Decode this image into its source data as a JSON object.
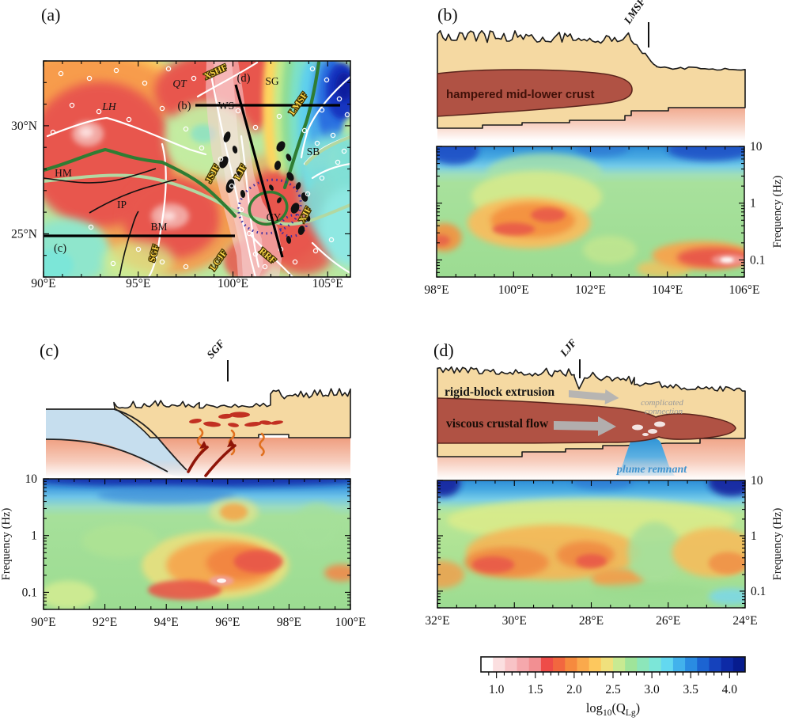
{
  "figure": {
    "background": "#ffffff"
  },
  "panel_letters": {
    "a": "(a)",
    "b": "(b)",
    "c": "(c)",
    "d": "(d)"
  },
  "chart_data": {
    "a": {
      "type": "heatmap",
      "subtype": "map of log10(QLg) at low frequency",
      "label": "(a)",
      "x_axis": {
        "min": 90,
        "max": 106.2,
        "minor_step": 1,
        "major_ticks": [
          {
            "v": 90,
            "label": "90°E"
          },
          {
            "v": 95,
            "label": "95°E"
          },
          {
            "v": 100,
            "label": "100°E"
          },
          {
            "v": 105,
            "label": "105°E"
          }
        ]
      },
      "y_axis": {
        "min": 23,
        "max": 33,
        "minor_step": 1,
        "major_ticks": [
          {
            "v": 30,
            "label": "30°N"
          },
          {
            "v": 25,
            "label": "25°N"
          }
        ]
      },
      "terranes": {
        "qt": "QT",
        "sg": "SG",
        "lh": "LH",
        "ws": "WS",
        "hm": "HM",
        "ip": "IP",
        "bm": "BM",
        "sb": "SB",
        "cy": "CY"
      },
      "faults": {
        "xshf": "XSHF",
        "lmsf": "LMSF",
        "jsjf": "JSJF",
        "ljf": "LJF",
        "sgf": "SGF",
        "lcjf": "LCJF",
        "rrf": "RRF",
        "xjf": "XJF"
      },
      "sections": {
        "b": "(b)",
        "c": "(c)",
        "d": "(d)"
      },
      "legend_colors": {
        "low_q_red": "#e8564e",
        "high_q_blue": "#1535c0",
        "swath_pink": "rgba(247,208,214,0.55)"
      }
    },
    "b": {
      "type": "heatmap",
      "label": "(b)",
      "fault_marker": "LMSF",
      "annotation": "hampered  mid-lower crust",
      "x_axis": {
        "min": 98,
        "max": 106,
        "minor_step": 0.5,
        "major_ticks": [
          {
            "v": 98,
            "label": "98°E"
          },
          {
            "v": 100,
            "label": "100°E"
          },
          {
            "v": 102,
            "label": "102°E"
          },
          {
            "v": 104,
            "label": "104°E"
          },
          {
            "v": 106,
            "label": "106°E"
          }
        ]
      },
      "y_axis": {
        "label": "Frequency (Hz)",
        "scale": "log",
        "min": 0.05,
        "max": 10,
        "side": "right",
        "major_ticks": [
          {
            "v": 10,
            "label": "10"
          },
          {
            "v": 1,
            "label": "1"
          },
          {
            "v": 0.1,
            "label": "0.1"
          }
        ]
      },
      "bands": [
        {
          "f": 10,
          "c": "#2e8ed8"
        },
        {
          "f": 6.5,
          "c": "#47a9e2"
        },
        {
          "f": 4.5,
          "c": "#74cbe8"
        },
        {
          "f": 3.2,
          "c": "#9fdfba"
        },
        {
          "f": 2.3,
          "c": "#a8e19c"
        },
        {
          "f": 0.05,
          "c": "#9cdc92"
        }
      ],
      "features": [
        {
          "x": 98.45,
          "f": 8.5,
          "xs": 1.3,
          "fs": 0.5,
          "c": "#1c49c4",
          "o": 0.85
        },
        {
          "x": 105.1,
          "f": 8.8,
          "xs": 2.2,
          "fs": 0.4,
          "c": "#1c49c4",
          "o": 0.8
        },
        {
          "x": 102.3,
          "f": 9.3,
          "xs": 1.4,
          "fs": 0.3,
          "c": "#2a6fd0",
          "o": 0.6
        },
        {
          "x": 100.8,
          "f": 3.4,
          "xs": 3.0,
          "fs": 0.7,
          "c": "#a8e2a8",
          "o": 0.8
        },
        {
          "x": 100.6,
          "f": 1.3,
          "xs": 3.4,
          "fs": 0.9,
          "c": "#d6ea8c",
          "o": 0.9
        },
        {
          "x": 100.4,
          "f": 0.45,
          "xs": 3.2,
          "fs": 0.9,
          "c": "#f7bd5e",
          "o": 0.95
        },
        {
          "x": 100.5,
          "f": 0.5,
          "xs": 2.2,
          "fs": 0.6,
          "c": "#f49140",
          "o": 0.95
        },
        {
          "x": 100.9,
          "f": 0.62,
          "xs": 0.9,
          "fs": 0.25,
          "c": "#e85a4a",
          "o": 0.9,
          "blur": 3
        },
        {
          "x": 100.0,
          "f": 0.35,
          "xs": 1.1,
          "fs": 0.22,
          "c": "#e85a4a",
          "o": 0.9,
          "blur": 3
        },
        {
          "x": 98.2,
          "f": 0.25,
          "xs": 0.9,
          "fs": 0.5,
          "c": "#f49140",
          "o": 0.9
        },
        {
          "x": 98.1,
          "f": 0.22,
          "xs": 0.5,
          "fs": 0.2,
          "c": "#e8614a",
          "o": 0.85,
          "blur": 3
        },
        {
          "x": 102.5,
          "f": 0.15,
          "xs": 1.4,
          "fs": 0.5,
          "c": "#c9e88e",
          "o": 0.7
        },
        {
          "x": 103.9,
          "f": 0.07,
          "xs": 1.4,
          "fs": 0.3,
          "c": "#f2c25e",
          "o": 0.8
        },
        {
          "x": 104.9,
          "f": 0.12,
          "xs": 2.6,
          "fs": 0.5,
          "c": "#f7a44e",
          "o": 0.95
        },
        {
          "x": 105.2,
          "f": 0.11,
          "xs": 1.9,
          "fs": 0.35,
          "c": "#e8564a",
          "o": 0.95
        },
        {
          "x": 105.6,
          "f": 0.1,
          "xs": 0.9,
          "fs": 0.2,
          "c": "#f29b94",
          "o": 0.95,
          "blur": 3
        },
        {
          "x": 105.55,
          "f": 0.1,
          "xs": 0.35,
          "fs": 0.1,
          "c": "#ffffff",
          "o": 0.95,
          "blur": 2
        }
      ]
    },
    "c": {
      "type": "heatmap",
      "label": "(c)",
      "fault_marker": "SGF",
      "x_axis": {
        "min": 90,
        "max": 100,
        "minor_step": 0.5,
        "major_ticks": [
          {
            "v": 90,
            "label": "90°E"
          },
          {
            "v": 92,
            "label": "92°E"
          },
          {
            "v": 94,
            "label": "94°E"
          },
          {
            "v": 96,
            "label": "96°E"
          },
          {
            "v": 98,
            "label": "98°E"
          },
          {
            "v": 100,
            "label": "100°E"
          }
        ]
      },
      "y_axis": {
        "label": "Frequency (Hz)",
        "scale": "log",
        "min": 0.05,
        "max": 10,
        "side": "left",
        "major_ticks": [
          {
            "v": 10,
            "label": "10"
          },
          {
            "v": 1,
            "label": "1"
          },
          {
            "v": 0.1,
            "label": "0.1"
          }
        ]
      },
      "bands": [
        {
          "f": 10,
          "c": "#2d86d4"
        },
        {
          "f": 7,
          "c": "#3f9ade"
        },
        {
          "f": 4.8,
          "c": "#6ec4e8"
        },
        {
          "f": 3.2,
          "c": "#9adcc0"
        },
        {
          "f": 2.2,
          "c": "#a6e09a"
        },
        {
          "f": 0.05,
          "c": "#9cdc92"
        }
      ],
      "features": [
        {
          "x": 95,
          "f": 9.6,
          "xs": 11,
          "fs": 0.25,
          "c": "#1733ae",
          "o": 0.95
        },
        {
          "x": 94,
          "f": 5.2,
          "xs": 4.5,
          "fs": 0.3,
          "c": "#3f8fd8",
          "o": 0.7
        },
        {
          "x": 96.2,
          "f": 2.6,
          "xs": 1.6,
          "fs": 0.5,
          "c": "#e4e48a",
          "o": 0.7
        },
        {
          "x": 96.2,
          "f": 2.6,
          "xs": 0.9,
          "fs": 0.3,
          "c": "#f2a84e",
          "o": 0.9,
          "blur": 3
        },
        {
          "x": 95.6,
          "f": 0.3,
          "xs": 4.8,
          "fs": 1.2,
          "c": "#e9e07e",
          "o": 0.9
        },
        {
          "x": 95.8,
          "f": 0.3,
          "xs": 3.6,
          "fs": 0.9,
          "c": "#f6a84f",
          "o": 0.95
        },
        {
          "x": 96.4,
          "f": 0.33,
          "xs": 2.2,
          "fs": 0.6,
          "c": "#f28340",
          "o": 0.9
        },
        {
          "x": 97.0,
          "f": 0.35,
          "xs": 1.6,
          "fs": 0.4,
          "c": "#e8564a",
          "o": 0.9,
          "blur": 3
        },
        {
          "x": 94.6,
          "f": 0.11,
          "xs": 2.4,
          "fs": 0.35,
          "c": "#e8564a",
          "o": 0.9,
          "blur": 3
        },
        {
          "x": 95.8,
          "f": 0.16,
          "xs": 0.8,
          "fs": 0.18,
          "c": "#f2a09a",
          "o": 0.9,
          "blur": 2
        },
        {
          "x": 95.8,
          "f": 0.16,
          "xs": 0.3,
          "fs": 0.08,
          "c": "#ffffff",
          "o": 0.9,
          "blur": 1.5
        },
        {
          "x": 99.7,
          "f": 0.22,
          "xs": 1.1,
          "fs": 0.3,
          "c": "#f08a4c",
          "o": 0.9
        },
        {
          "x": 90.8,
          "f": 0.09,
          "xs": 1.8,
          "fs": 0.5,
          "c": "#d8ee92",
          "o": 0.8
        },
        {
          "x": 92.5,
          "f": 0.8,
          "xs": 2.5,
          "fs": 0.6,
          "c": "#b2e493",
          "o": 0.6
        },
        {
          "x": 98.9,
          "f": 1.5,
          "xs": 1.4,
          "fs": 0.8,
          "c": "#a5e09a",
          "o": 0.7
        }
      ]
    },
    "d": {
      "type": "heatmap",
      "label": "(d)",
      "fault_marker": "LJF",
      "annotations": {
        "rigid": "rigid-block extrusion",
        "viscous": "viscous crustal flow",
        "conn1": "complicated",
        "conn2": "connection",
        "plume": "plume remnant"
      },
      "x_axis": {
        "min": 32,
        "max": 24,
        "minor_step": 0.5,
        "major_ticks": [
          {
            "v": 32,
            "label": "32°E"
          },
          {
            "v": 30,
            "label": "30°E"
          },
          {
            "v": 28,
            "label": "28°E"
          },
          {
            "v": 26,
            "label": "26°E"
          },
          {
            "v": 24,
            "label": "24°E"
          }
        ]
      },
      "y_axis": {
        "label": "Frequency (Hz)",
        "scale": "log",
        "min": 0.05,
        "max": 10,
        "side": "right",
        "major_ticks": [
          {
            "v": 10,
            "label": "10"
          },
          {
            "v": 1,
            "label": "1"
          },
          {
            "v": 0.1,
            "label": "0.1"
          }
        ]
      },
      "bands": [
        {
          "f": 10,
          "c": "#2e8ed8"
        },
        {
          "f": 6.8,
          "c": "#47a9e2"
        },
        {
          "f": 4.6,
          "c": "#74cbe8"
        },
        {
          "f": 3.2,
          "c": "#a6e2ae"
        },
        {
          "f": 2.4,
          "c": "#b8e696"
        },
        {
          "f": 0.05,
          "c": "#9cdc92"
        }
      ],
      "features": [
        {
          "x": 31.85,
          "f": 9,
          "xs": 0.9,
          "fs": 0.5,
          "c": "#14249e",
          "o": 0.9
        },
        {
          "x": 24.35,
          "f": 9.2,
          "xs": 1.2,
          "fs": 0.5,
          "c": "#14249e",
          "o": 0.9
        },
        {
          "x": 27.7,
          "f": 9.5,
          "xs": 1.6,
          "fs": 0.3,
          "c": "#2a6fd0",
          "o": 0.55
        },
        {
          "x": 28,
          "f": 1.9,
          "xs": 7.5,
          "fs": 0.8,
          "c": "#dcec8a",
          "o": 0.85
        },
        {
          "x": 29,
          "f": 0.5,
          "xs": 4.5,
          "fs": 1.0,
          "c": "#f6b656",
          "o": 0.9
        },
        {
          "x": 30.2,
          "f": 0.33,
          "xs": 2.2,
          "fs": 0.55,
          "c": "#f08a42",
          "o": 0.9
        },
        {
          "x": 30.55,
          "f": 0.3,
          "xs": 1.1,
          "fs": 0.3,
          "c": "#e8564a",
          "o": 0.85,
          "blur": 3
        },
        {
          "x": 28.15,
          "f": 0.45,
          "xs": 1.5,
          "fs": 0.5,
          "c": "#f08a42",
          "o": 0.9
        },
        {
          "x": 28.0,
          "f": 0.35,
          "xs": 0.8,
          "fs": 0.25,
          "c": "#e8564a",
          "o": 0.85,
          "blur": 3
        },
        {
          "x": 27.3,
          "f": 0.17,
          "xs": 1.4,
          "fs": 0.35,
          "c": "#f49c4a",
          "o": 0.9
        },
        {
          "x": 31.9,
          "f": 0.2,
          "xs": 1.2,
          "fs": 0.5,
          "c": "#f49c4a",
          "o": 0.8
        },
        {
          "x": 26.35,
          "f": 0.5,
          "xs": 1.4,
          "fs": 1.1,
          "c": "#a8df9a",
          "o": 0.85
        },
        {
          "x": 24.8,
          "f": 0.5,
          "xs": 2.2,
          "fs": 0.9,
          "c": "#f6bd5c",
          "o": 0.9
        },
        {
          "x": 24.45,
          "f": 0.32,
          "xs": 1.0,
          "fs": 0.4,
          "c": "#f08f46",
          "o": 0.85,
          "blur": 3
        },
        {
          "x": 26.5,
          "f": 0.1,
          "xs": 3,
          "fs": 0.3,
          "c": "#9bdb90",
          "o": 0.7
        },
        {
          "x": 24.35,
          "f": 0.08,
          "xs": 1.2,
          "fs": 0.3,
          "c": "#7cd8ea",
          "o": 0.85
        }
      ]
    },
    "colorbar": {
      "type": "colorbar",
      "label_parts": {
        "p1": "log",
        "sub1": "10",
        "p2": "(Q",
        "sub2": "Lg",
        "p3": ")"
      },
      "value_min": 0.8,
      "value_max": 4.2,
      "minor_step": 0.1,
      "major_ticks": [
        {
          "v": 1.0,
          "label": "1.0"
        },
        {
          "v": 1.5,
          "label": "1.5"
        },
        {
          "v": 2.0,
          "label": "2.0"
        },
        {
          "v": 2.5,
          "label": "2.5"
        },
        {
          "v": 3.0,
          "label": "3.0"
        },
        {
          "v": 3.5,
          "label": "3.5"
        },
        {
          "v": 4.0,
          "label": "4.0"
        }
      ],
      "cells": [
        "#ffffff",
        "#fbdfe0",
        "#f8c3c6",
        "#f5a8ac",
        "#f28f92",
        "#ee4c48",
        "#f2673f",
        "#f68a3e",
        "#faa94c",
        "#fdc85e",
        "#f0e07c",
        "#c8ea92",
        "#9fe49a",
        "#8ce6ba",
        "#7ce6d8",
        "#63d8f0",
        "#42b2ec",
        "#2a8ce2",
        "#1c64d2",
        "#1542bc",
        "#0d2aa6",
        "#071c8e"
      ]
    }
  }
}
